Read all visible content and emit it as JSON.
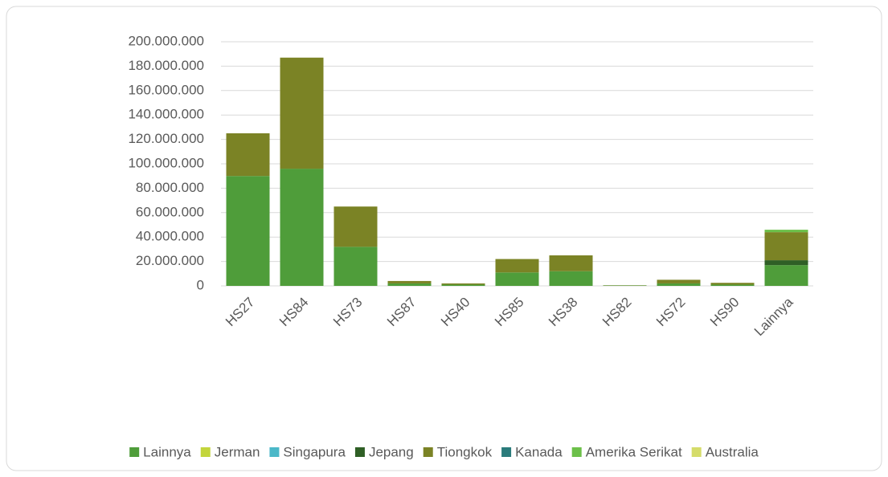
{
  "chart_data": {
    "type": "stacked_bar",
    "categories": [
      "HS27",
      "HS84",
      "HS73",
      "HS87",
      "HS40",
      "HS85",
      "HS38",
      "HS82",
      "HS72",
      "HS90",
      "Lainnya"
    ],
    "series": [
      {
        "name": "Lainnya",
        "color": "#4f9d3a",
        "values": [
          90000000,
          96000000,
          32000000,
          2000000,
          1000000,
          11000000,
          12000000,
          300000,
          2000000,
          1000000,
          17000000
        ]
      },
      {
        "name": "Jerman",
        "color": "#c3d53c",
        "values": [
          0,
          0,
          0,
          0,
          0,
          0,
          0,
          0,
          0,
          0,
          0
        ]
      },
      {
        "name": "Singapura",
        "color": "#4bb8c8",
        "values": [
          0,
          0,
          0,
          0,
          0,
          0,
          0,
          0,
          0,
          0,
          0
        ]
      },
      {
        "name": "Jepang",
        "color": "#2f5f25",
        "values": [
          0,
          0,
          0,
          0,
          0,
          0,
          0,
          0,
          0,
          0,
          4000000
        ]
      },
      {
        "name": "Tiongkok",
        "color": "#7b8325",
        "values": [
          35000000,
          91000000,
          33000000,
          2000000,
          1000000,
          11000000,
          13000000,
          200000,
          3000000,
          1500000,
          23000000
        ]
      },
      {
        "name": "Kanada",
        "color": "#2a7b7b",
        "values": [
          0,
          0,
          0,
          0,
          0,
          0,
          0,
          0,
          0,
          0,
          0
        ]
      },
      {
        "name": "Amerika Serikat",
        "color": "#6cc04a",
        "values": [
          0,
          0,
          0,
          0,
          0,
          0,
          0,
          0,
          0,
          0,
          2000000
        ]
      },
      {
        "name": "Australia",
        "color": "#d5dc6a",
        "values": [
          0,
          0,
          0,
          0,
          0,
          0,
          0,
          0,
          0,
          0,
          0
        ]
      }
    ],
    "ylim": [
      0,
      200000000
    ],
    "yticks": [
      0,
      {
        "value": 20000000,
        "label": "20.000.000"
      },
      {
        "value": 40000000,
        "label": "40.000.000"
      },
      {
        "value": 60000000,
        "label": "60.000.000"
      },
      {
        "value": 80000000,
        "label": "80.000.000"
      },
      {
        "value": 100000000,
        "label": "100.000.000"
      },
      {
        "value": 120000000,
        "label": "120.000.000"
      },
      {
        "value": 140000000,
        "label": "140.000.000"
      },
      {
        "value": 160000000,
        "label": "160.000.000"
      },
      {
        "value": 180000000,
        "label": "180.000.000"
      },
      {
        "value": 200000000,
        "label": "200.000.000"
      }
    ],
    "grid": true,
    "legend": "bottom"
  }
}
